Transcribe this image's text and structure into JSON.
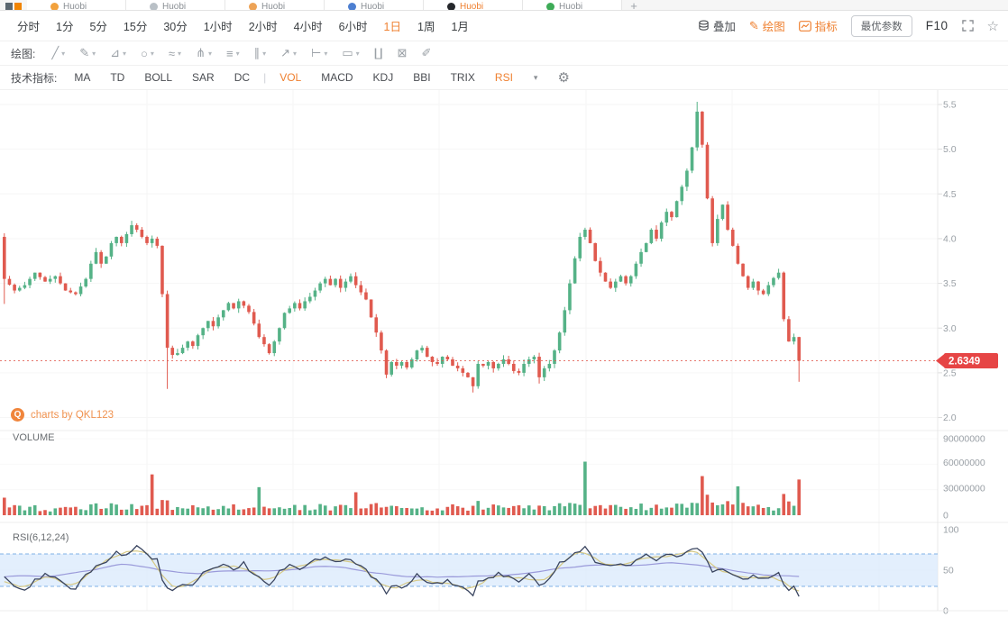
{
  "tabbar": {
    "tabs": [
      {
        "label": "Huobi",
        "icon": "coin-orange-icon",
        "color": "#f2a13c",
        "active": false
      },
      {
        "label": "Huobi",
        "icon": "coin-gray-icon",
        "color": "#b9c0c6",
        "active": false
      },
      {
        "label": "Huobi",
        "icon": "coin-amber-icon",
        "color": "#eda356",
        "active": false
      },
      {
        "label": "Huobi",
        "icon": "coin-blue-icon",
        "color": "#4d7fd1",
        "active": false
      },
      {
        "label": "Huobi",
        "icon": "coin-black-icon",
        "color": "#25272b",
        "active": true
      },
      {
        "label": "Huobi",
        "icon": "coin-green-icon",
        "color": "#3eab57",
        "active": false
      }
    ],
    "add_label": "+"
  },
  "intervals": {
    "items": [
      "分时",
      "1分",
      "5分",
      "15分",
      "30分",
      "1小时",
      "2小时",
      "4小时",
      "6小时",
      "1日",
      "1周",
      "1月"
    ],
    "active": "1日"
  },
  "top_right": {
    "overlay": "叠加",
    "draw": "绘图",
    "indicator": "指标",
    "best_params": "最优参数",
    "f10": "F10"
  },
  "drawbar": {
    "label": "绘图:",
    "tools": [
      {
        "name": "trend-line",
        "glyph": "╱",
        "dropdown": true
      },
      {
        "name": "brush",
        "glyph": "✎",
        "dropdown": true
      },
      {
        "name": "polyline",
        "glyph": "⊿",
        "dropdown": true
      },
      {
        "name": "ellipse",
        "glyph": "○",
        "dropdown": true
      },
      {
        "name": "wave",
        "glyph": "≈",
        "dropdown": true
      },
      {
        "name": "pitchfork",
        "glyph": "⋔",
        "dropdown": true
      },
      {
        "name": "text-note",
        "glyph": "≡",
        "dropdown": true
      },
      {
        "name": "vertical-line",
        "glyph": "∥",
        "dropdown": true
      },
      {
        "name": "arrow",
        "glyph": "↗",
        "dropdown": true
      },
      {
        "name": "measure",
        "glyph": "⊢",
        "dropdown": true
      },
      {
        "name": "callout",
        "glyph": "▭",
        "dropdown": true
      },
      {
        "name": "indicator-window",
        "glyph": "∐",
        "dropdown": false
      },
      {
        "name": "delete",
        "glyph": "⊠",
        "dropdown": false
      },
      {
        "name": "eraser",
        "glyph": "✐",
        "dropdown": false
      }
    ]
  },
  "indicator_bar": {
    "label": "技术指标:",
    "main": [
      "MA",
      "TD",
      "BOLL",
      "SAR",
      "DC"
    ],
    "separator": "|",
    "sub": [
      "VOL",
      "MACD",
      "KDJ",
      "BBI",
      "TRIX",
      "RSI"
    ],
    "active": [
      "VOL",
      "RSI"
    ],
    "caret": "▾"
  },
  "watermark": {
    "logo": "Q",
    "text": "charts by QKL123"
  },
  "panel_labels": {
    "volume": "VOLUME",
    "rsi": "RSI(6,12,24)"
  },
  "chart_data": {
    "type": "candlestick",
    "panels": [
      "price",
      "volume",
      "rsi"
    ],
    "price_axis": {
      "ticks": [
        "5.5",
        "5.0",
        "4.5",
        "4.0",
        "3.5",
        "3.0",
        "2.5",
        "2.0"
      ],
      "min": 2.0,
      "max": 5.5
    },
    "volume_axis": {
      "ticks": [
        "90000000",
        "60000000",
        "30000000",
        "0"
      ]
    },
    "rsi_axis": {
      "ticks": [
        "100",
        "50",
        "0"
      ],
      "overbought": 70,
      "oversold": 30
    },
    "last_price": "2.6349",
    "last_price_value": 2.6349,
    "candles": 157,
    "open0": 4.02,
    "close_anchors": [
      [
        0,
        3.55
      ],
      [
        2,
        3.42
      ],
      [
        4,
        3.48
      ],
      [
        6,
        3.62
      ],
      [
        8,
        3.52
      ],
      [
        10,
        3.58
      ],
      [
        12,
        3.42
      ],
      [
        14,
        3.38
      ],
      [
        16,
        3.55
      ],
      [
        17,
        3.72
      ],
      [
        18,
        3.85
      ],
      [
        19,
        3.72
      ],
      [
        20,
        3.8
      ],
      [
        21,
        3.95
      ],
      [
        22,
        4.02
      ],
      [
        23,
        3.95
      ],
      [
        24,
        4.05
      ],
      [
        25,
        4.15
      ],
      [
        26,
        4.1
      ],
      [
        27,
        4.02
      ],
      [
        28,
        3.95
      ],
      [
        29,
        4.0
      ],
      [
        30,
        3.92
      ],
      [
        31,
        3.38
      ],
      [
        32,
        2.78
      ],
      [
        33,
        2.7
      ],
      [
        34,
        2.72
      ],
      [
        35,
        2.78
      ],
      [
        36,
        2.85
      ],
      [
        37,
        2.8
      ],
      [
        38,
        2.92
      ],
      [
        39,
        3.0
      ],
      [
        40,
        3.08
      ],
      [
        41,
        3.02
      ],
      [
        42,
        3.12
      ],
      [
        43,
        3.2
      ],
      [
        44,
        3.28
      ],
      [
        45,
        3.22
      ],
      [
        46,
        3.3
      ],
      [
        47,
        3.25
      ],
      [
        48,
        3.18
      ],
      [
        49,
        3.05
      ],
      [
        50,
        2.9
      ],
      [
        51,
        2.82
      ],
      [
        52,
        2.72
      ],
      [
        53,
        2.85
      ],
      [
        54,
        3.0
      ],
      [
        55,
        3.17
      ],
      [
        56,
        3.22
      ],
      [
        57,
        3.28
      ],
      [
        58,
        3.22
      ],
      [
        59,
        3.3
      ],
      [
        60,
        3.35
      ],
      [
        61,
        3.42
      ],
      [
        62,
        3.5
      ],
      [
        63,
        3.55
      ],
      [
        64,
        3.48
      ],
      [
        65,
        3.55
      ],
      [
        66,
        3.45
      ],
      [
        67,
        3.52
      ],
      [
        68,
        3.58
      ],
      [
        69,
        3.48
      ],
      [
        70,
        3.4
      ],
      [
        71,
        3.32
      ],
      [
        72,
        3.12
      ],
      [
        73,
        2.95
      ],
      [
        74,
        2.75
      ],
      [
        75,
        2.48
      ],
      [
        76,
        2.62
      ],
      [
        77,
        2.58
      ],
      [
        78,
        2.62
      ],
      [
        79,
        2.56
      ],
      [
        80,
        2.65
      ],
      [
        81,
        2.75
      ],
      [
        82,
        2.78
      ],
      [
        83,
        2.68
      ],
      [
        84,
        2.62
      ],
      [
        85,
        2.6
      ],
      [
        86,
        2.68
      ],
      [
        87,
        2.65
      ],
      [
        88,
        2.58
      ],
      [
        89,
        2.55
      ],
      [
        90,
        2.5
      ],
      [
        91,
        2.45
      ],
      [
        92,
        2.35
      ],
      [
        93,
        2.6
      ],
      [
        94,
        2.58
      ],
      [
        95,
        2.62
      ],
      [
        96,
        2.55
      ],
      [
        97,
        2.6
      ],
      [
        98,
        2.65
      ],
      [
        99,
        2.6
      ],
      [
        100,
        2.52
      ],
      [
        101,
        2.5
      ],
      [
        102,
        2.6
      ],
      [
        103,
        2.65
      ],
      [
        104,
        2.68
      ],
      [
        105,
        2.45
      ],
      [
        106,
        2.55
      ],
      [
        107,
        2.6
      ],
      [
        108,
        2.75
      ],
      [
        109,
        2.95
      ],
      [
        110,
        3.2
      ],
      [
        111,
        3.5
      ],
      [
        112,
        3.78
      ],
      [
        113,
        4.02
      ],
      [
        114,
        4.1
      ],
      [
        115,
        3.95
      ],
      [
        116,
        3.75
      ],
      [
        117,
        3.62
      ],
      [
        118,
        3.52
      ],
      [
        119,
        3.45
      ],
      [
        120,
        3.52
      ],
      [
        121,
        3.58
      ],
      [
        122,
        3.5
      ],
      [
        123,
        3.58
      ],
      [
        124,
        3.72
      ],
      [
        125,
        3.85
      ],
      [
        126,
        3.95
      ],
      [
        127,
        4.1
      ],
      [
        128,
        4.0
      ],
      [
        129,
        4.18
      ],
      [
        130,
        4.3
      ],
      [
        131,
        4.24
      ],
      [
        132,
        4.42
      ],
      [
        133,
        4.58
      ],
      [
        134,
        4.76
      ],
      [
        135,
        5.02
      ],
      [
        136,
        5.42
      ],
      [
        137,
        5.05
      ],
      [
        138,
        4.45
      ],
      [
        139,
        3.95
      ],
      [
        140,
        4.22
      ],
      [
        141,
        4.38
      ],
      [
        142,
        4.1
      ],
      [
        143,
        3.92
      ],
      [
        144,
        3.72
      ],
      [
        145,
        3.58
      ],
      [
        146,
        3.45
      ],
      [
        147,
        3.52
      ],
      [
        148,
        3.42
      ],
      [
        149,
        3.38
      ],
      [
        150,
        3.48
      ],
      [
        151,
        3.56
      ],
      [
        152,
        3.62
      ],
      [
        153,
        3.1
      ],
      [
        154,
        2.85
      ],
      [
        155,
        2.9
      ],
      [
        156,
        2.6349
      ]
    ],
    "wick_overrides": {
      "0": [
        4.06,
        3.27
      ],
      "32": [
        null,
        2.32
      ],
      "75": [
        null,
        2.44
      ],
      "92": [
        null,
        2.28
      ],
      "105": [
        null,
        2.38
      ],
      "136": [
        5.53,
        null
      ],
      "156": [
        null,
        2.4
      ]
    },
    "volume_spikes": [
      [
        29,
        48,
        "r"
      ],
      [
        50,
        33,
        "g"
      ],
      [
        69,
        27,
        "r"
      ],
      [
        114,
        63,
        "g"
      ],
      [
        137,
        46,
        "r"
      ],
      [
        144,
        34,
        "g"
      ],
      [
        153,
        25,
        "r"
      ],
      [
        156,
        42,
        "r"
      ]
    ],
    "rsi6_anchors": [
      [
        0,
        42
      ],
      [
        2,
        30
      ],
      [
        4,
        25
      ],
      [
        6,
        38
      ],
      [
        8,
        45
      ],
      [
        10,
        42
      ],
      [
        12,
        30
      ],
      [
        14,
        26
      ],
      [
        16,
        45
      ],
      [
        18,
        55
      ],
      [
        20,
        60
      ],
      [
        22,
        72
      ],
      [
        24,
        68
      ],
      [
        26,
        78
      ],
      [
        28,
        70
      ],
      [
        30,
        62
      ],
      [
        31,
        40
      ],
      [
        32,
        28
      ],
      [
        33,
        25
      ],
      [
        35,
        32
      ],
      [
        37,
        30
      ],
      [
        39,
        45
      ],
      [
        41,
        50
      ],
      [
        43,
        55
      ],
      [
        45,
        52
      ],
      [
        47,
        58
      ],
      [
        49,
        45
      ],
      [
        51,
        35
      ],
      [
        52,
        30
      ],
      [
        54,
        48
      ],
      [
        56,
        55
      ],
      [
        58,
        52
      ],
      [
        60,
        60
      ],
      [
        62,
        65
      ],
      [
        63,
        68
      ],
      [
        65,
        60
      ],
      [
        67,
        63
      ],
      [
        69,
        58
      ],
      [
        71,
        50
      ],
      [
        73,
        38
      ],
      [
        75,
        22
      ],
      [
        76,
        30
      ],
      [
        78,
        28
      ],
      [
        80,
        35
      ],
      [
        81,
        45
      ],
      [
        83,
        35
      ],
      [
        85,
        32
      ],
      [
        87,
        38
      ],
      [
        89,
        30
      ],
      [
        91,
        25
      ],
      [
        92,
        18
      ],
      [
        93,
        35
      ],
      [
        95,
        40
      ],
      [
        97,
        45
      ],
      [
        99,
        42
      ],
      [
        101,
        35
      ],
      [
        103,
        45
      ],
      [
        105,
        30
      ],
      [
        107,
        42
      ],
      [
        109,
        58
      ],
      [
        111,
        68
      ],
      [
        113,
        75
      ],
      [
        114,
        78
      ],
      [
        116,
        62
      ],
      [
        118,
        55
      ],
      [
        120,
        58
      ],
      [
        122,
        55
      ],
      [
        124,
        62
      ],
      [
        126,
        68
      ],
      [
        128,
        62
      ],
      [
        130,
        70
      ],
      [
        132,
        68
      ],
      [
        134,
        72
      ],
      [
        136,
        78
      ],
      [
        137,
        70
      ],
      [
        139,
        48
      ],
      [
        141,
        52
      ],
      [
        143,
        42
      ],
      [
        145,
        38
      ],
      [
        147,
        42
      ],
      [
        149,
        38
      ],
      [
        151,
        45
      ],
      [
        152,
        48
      ],
      [
        153,
        30
      ],
      [
        154,
        25
      ],
      [
        155,
        28
      ],
      [
        156,
        20
      ]
    ],
    "up_color": "#55b287",
    "down_color": "#e05a4f",
    "grid_color": "#f4f4f4",
    "axis_text_color": "#9aa0a6",
    "last_price_line_color": "#e0564b",
    "price_tag_bg": "#e64545",
    "rsi_colors": {
      "rsi6": "#3a4560",
      "rsi12": "#d6c985",
      "rsi24": "#9a9ada"
    },
    "band_fill": "#daeafc",
    "band_line": "#7fb2e6"
  }
}
